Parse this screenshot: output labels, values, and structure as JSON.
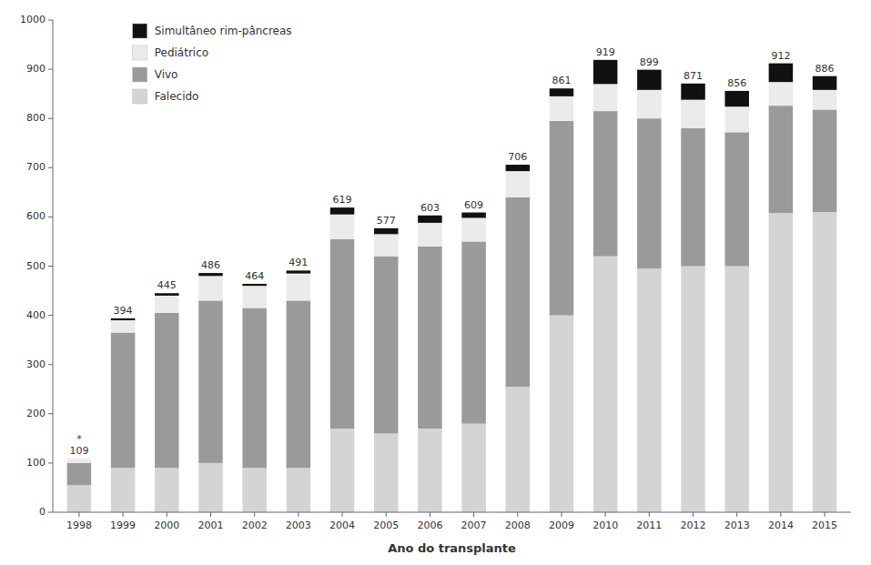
{
  "chart_data": {
    "type": "bar",
    "stacked": true,
    "x_label": "Ano do transplante",
    "categories": [
      "1998",
      "1999",
      "2000",
      "2001",
      "2002",
      "2003",
      "2004",
      "2005",
      "2006",
      "2007",
      "2008",
      "2009",
      "2010",
      "2011",
      "2012",
      "2013",
      "2014",
      "2015"
    ],
    "series": [
      {
        "name": "Falecido",
        "color": "#d4d4d4",
        "values": [
          55,
          90,
          90,
          100,
          90,
          90,
          170,
          160,
          170,
          180,
          255,
          400,
          520,
          495,
          500,
          500,
          608,
          610
        ]
      },
      {
        "name": "Vivo",
        "color": "#9a9a9a",
        "values": [
          45,
          275,
          315,
          330,
          325,
          340,
          385,
          360,
          370,
          370,
          385,
          395,
          295,
          305,
          280,
          272,
          218,
          208
        ]
      },
      {
        "name": "Pediátrico",
        "color": "#ebebeb",
        "values": [
          9,
          25,
          35,
          50,
          45,
          55,
          50,
          45,
          48,
          48,
          53,
          50,
          55,
          58,
          58,
          52,
          48,
          40
        ]
      },
      {
        "name": "Simultâneo rim-pâncreas",
        "color": "#111111",
        "values": [
          0,
          4,
          5,
          6,
          4,
          6,
          14,
          12,
          15,
          11,
          13,
          16,
          49,
          41,
          33,
          32,
          38,
          28
        ]
      }
    ],
    "totals": [
      109,
      394,
      445,
      486,
      464,
      491,
      619,
      577,
      603,
      609,
      706,
      861,
      919,
      899,
      871,
      856,
      912,
      886
    ],
    "total_labels": [
      "*\n109",
      "394",
      "445",
      "486",
      "464",
      "491",
      "619",
      "577",
      "603",
      "609",
      "706",
      "861",
      "919",
      "899",
      "871",
      "856",
      "912",
      "886"
    ],
    "ylim": [
      0,
      1000
    ],
    "yticks": [
      0,
      100,
      200,
      300,
      400,
      500,
      600,
      700,
      800,
      900,
      1000
    ],
    "grid": false,
    "legend": "upper left"
  }
}
